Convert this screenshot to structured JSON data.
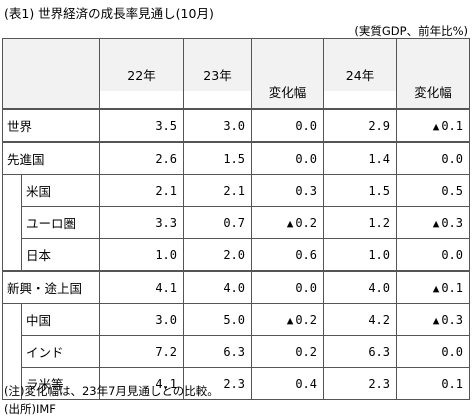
{
  "title": "(表1) 世界経済の成長率見通し(10月)",
  "unit": "(実質GDP、前年比%)",
  "headers": {
    "y22": "22年",
    "y23": "23年",
    "y24": "24年",
    "change23": "変化幅",
    "change24": "変化幅"
  },
  "rows": [
    {
      "label": "世界",
      "y22": "3.5",
      "y23": "3.0",
      "c23_mark": "",
      "c23": "0.0",
      "y24": "2.9",
      "c24_mark": "▲",
      "c24": "0.1"
    },
    {
      "label": "先進国",
      "y22": "2.6",
      "y23": "1.5",
      "c23_mark": "",
      "c23": "0.0",
      "y24": "1.4",
      "c24_mark": "",
      "c24": "0.0"
    },
    {
      "label": "米国",
      "y22": "2.1",
      "y23": "2.1",
      "c23_mark": "",
      "c23": "0.3",
      "y24": "1.5",
      "c24_mark": "",
      "c24": "0.5"
    },
    {
      "label": "ユーロ圏",
      "y22": "3.3",
      "y23": "0.7",
      "c23_mark": "▲",
      "c23": "0.2",
      "y24": "1.2",
      "c24_mark": "▲",
      "c24": "0.3"
    },
    {
      "label": "日本",
      "y22": "1.0",
      "y23": "2.0",
      "c23_mark": "",
      "c23": "0.6",
      "y24": "1.0",
      "c24_mark": "",
      "c24": "0.0"
    },
    {
      "label": "新興・途上国",
      "y22": "4.1",
      "y23": "4.0",
      "c23_mark": "",
      "c23": "0.0",
      "y24": "4.0",
      "c24_mark": "▲",
      "c24": "0.1"
    },
    {
      "label": "中国",
      "y22": "3.0",
      "y23": "5.0",
      "c23_mark": "▲",
      "c23": "0.2",
      "y24": "4.2",
      "c24_mark": "▲",
      "c24": "0.3"
    },
    {
      "label": "インド",
      "y22": "7.2",
      "y23": "6.3",
      "c23_mark": "",
      "c23": "0.2",
      "y24": "6.3",
      "c24_mark": "",
      "c24": "0.0"
    },
    {
      "label": "ラ米等",
      "y22": "4.1",
      "y23": "2.3",
      "c23_mark": "",
      "c23": "0.4",
      "y24": "2.3",
      "c24_mark": "",
      "c24": "0.1"
    }
  ],
  "note": "(注)変化幅は、23年7月見通しとの比較。",
  "source": "(出所)IMF"
}
